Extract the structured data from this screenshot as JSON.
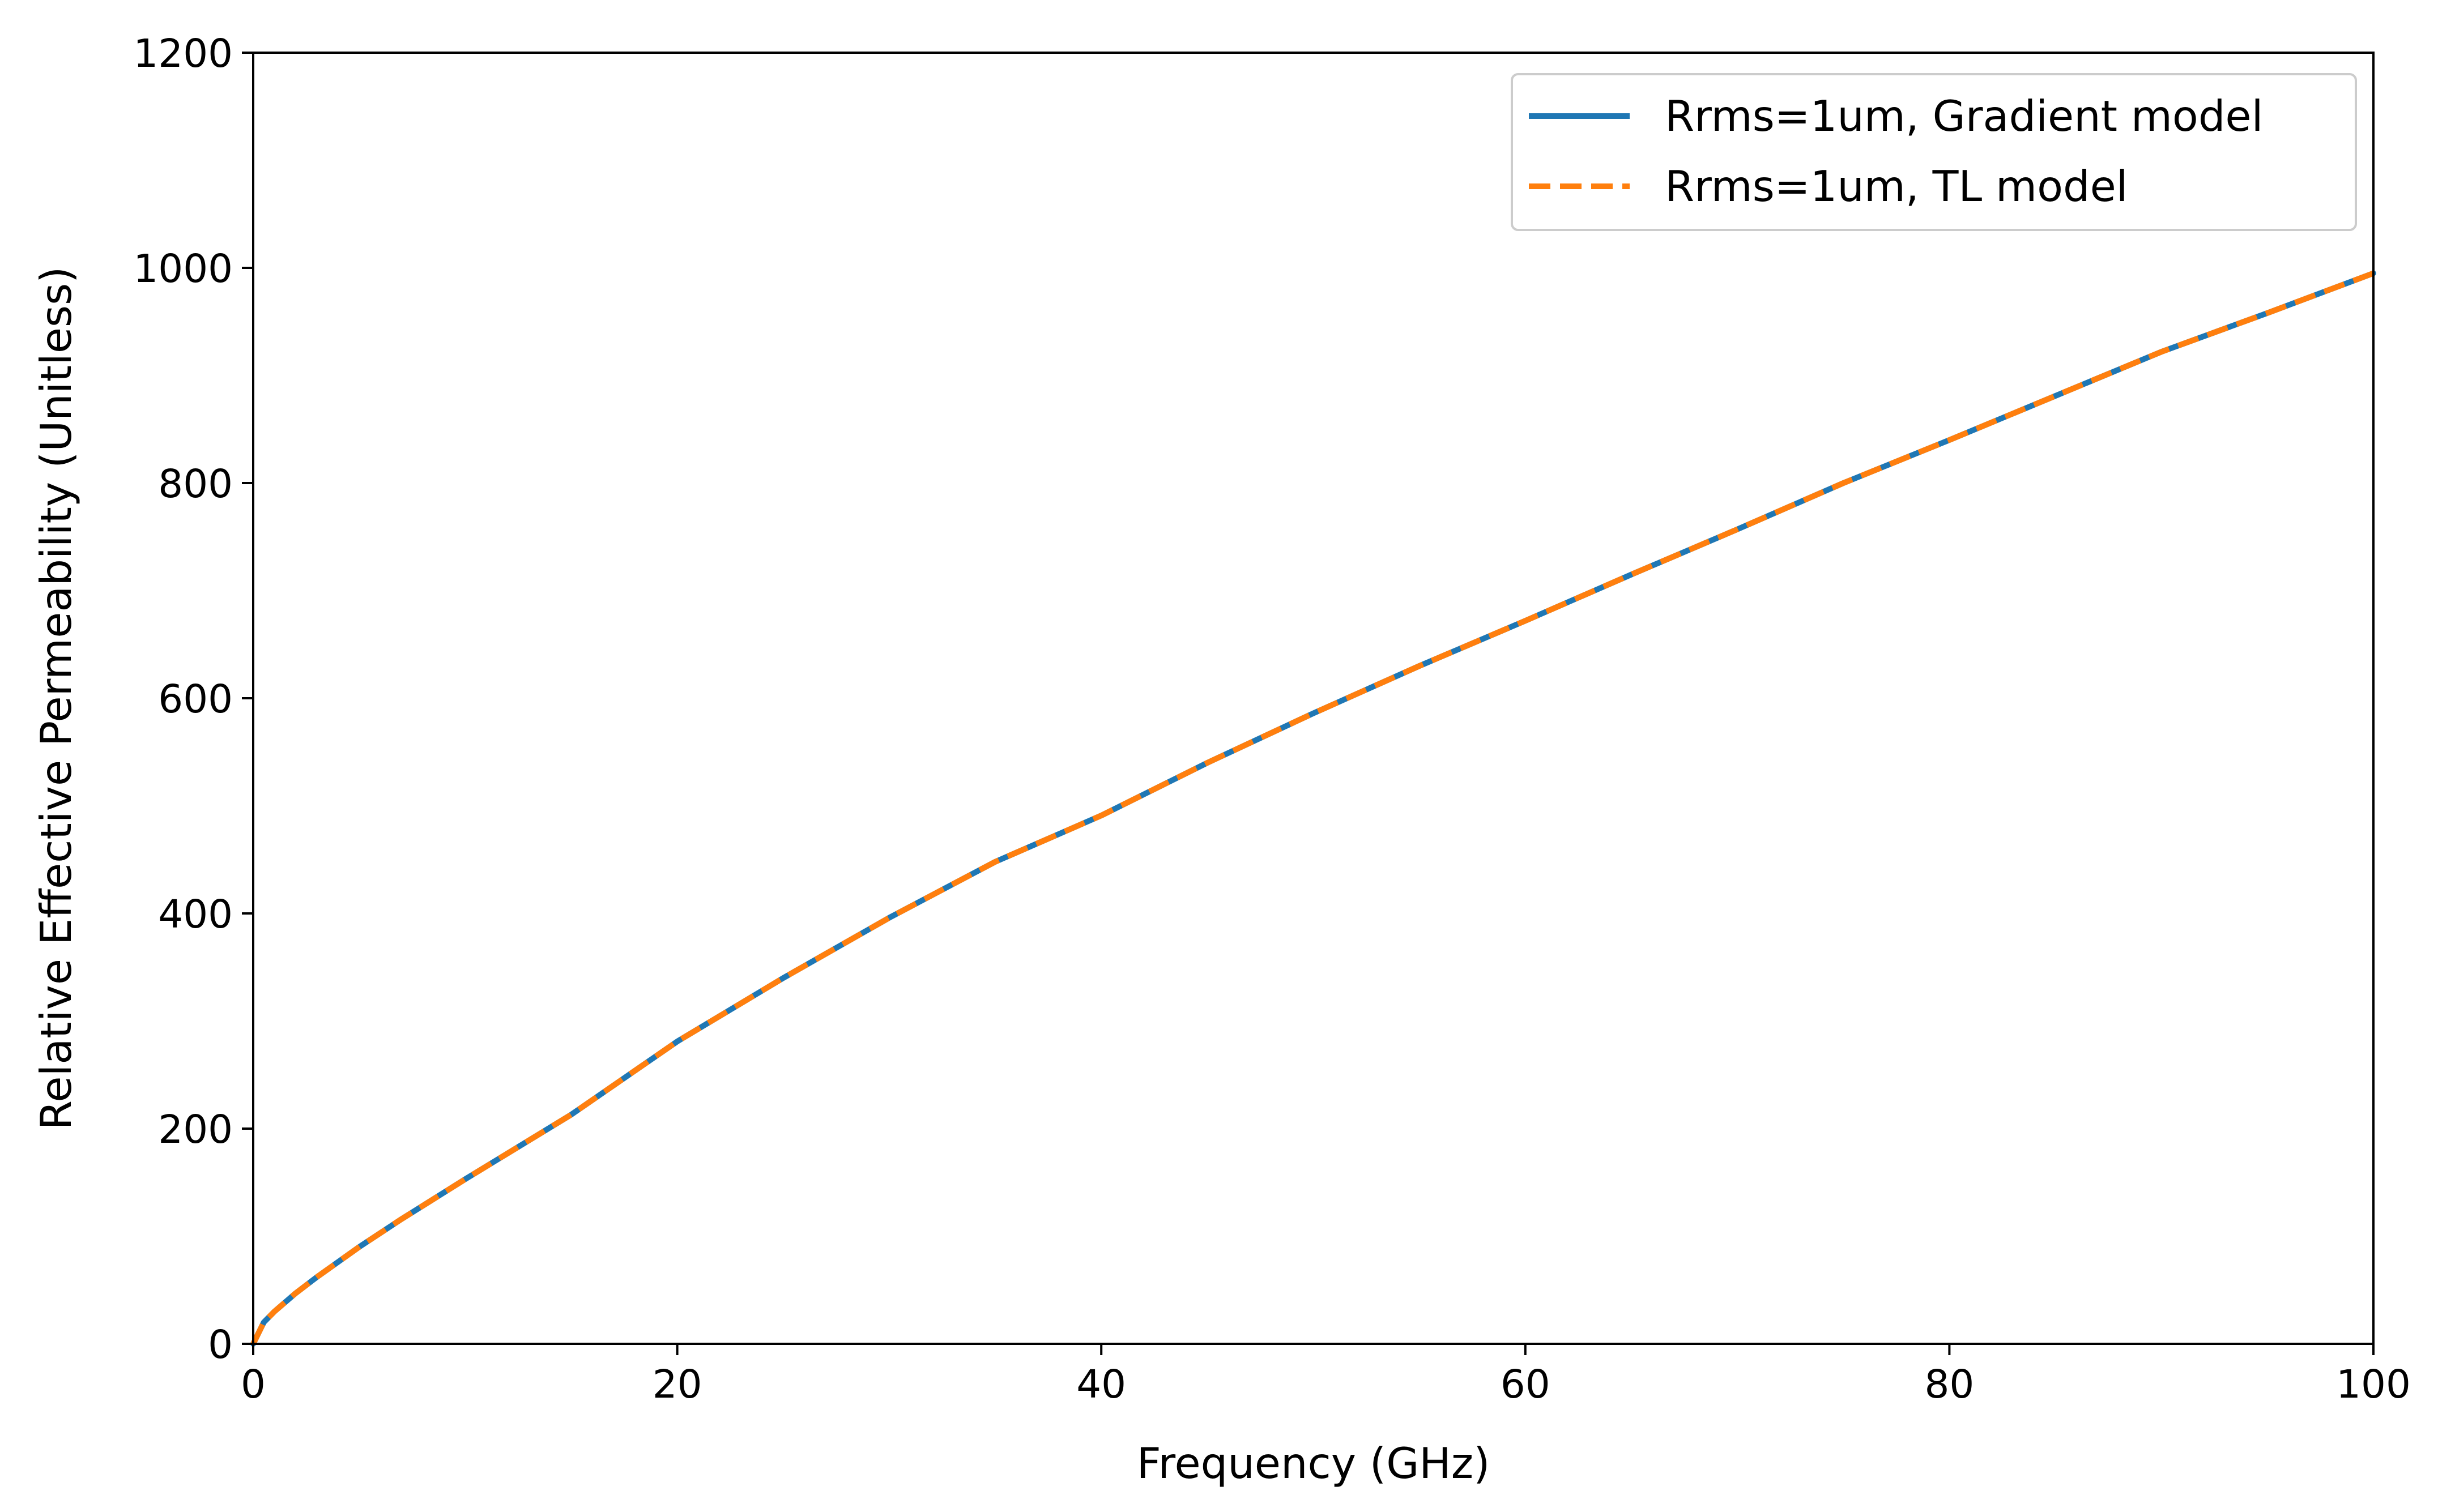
{
  "chart_data": {
    "type": "line",
    "xlabel": "Frequency (GHz)",
    "ylabel": "Relative Effective Permeability (Unitless)",
    "xlim": [
      0,
      100
    ],
    "ylim": [
      0,
      1200
    ],
    "x_ticks": [
      0,
      20,
      40,
      60,
      80,
      100
    ],
    "y_ticks": [
      0,
      200,
      400,
      600,
      800,
      1000,
      1200
    ],
    "x_tick_labels": [
      "0",
      "20",
      "40",
      "60",
      "80",
      "100"
    ],
    "y_tick_labels": [
      "0",
      "200",
      "400",
      "600",
      "800",
      "1000",
      "1200"
    ],
    "grid": false,
    "legend_position": "top-right",
    "x": [
      0,
      0.5,
      1,
      2,
      3,
      5,
      7,
      10,
      15,
      20,
      25,
      30,
      35,
      40,
      45,
      50,
      55,
      60,
      65,
      70,
      75,
      80,
      85,
      90,
      95,
      100
    ],
    "series": [
      {
        "name": "Rrms=1um, Gradient model",
        "color": "#1f77b4",
        "line_style": "solid",
        "values": [
          0,
          20,
          30,
          47,
          62,
          90,
          116,
          153,
          213,
          281,
          340,
          396,
          448,
          491,
          540,
          586,
          630,
          672,
          715,
          757,
          800,
          840,
          881,
          922,
          958,
          995
        ]
      },
      {
        "name": "Rrms=1um, TL model",
        "color": "#ff7f0e",
        "line_style": "dashed",
        "values": [
          0,
          20,
          30,
          47,
          62,
          90,
          116,
          153,
          213,
          281,
          340,
          396,
          448,
          491,
          540,
          586,
          630,
          672,
          715,
          757,
          800,
          840,
          881,
          922,
          958,
          995
        ]
      }
    ]
  }
}
